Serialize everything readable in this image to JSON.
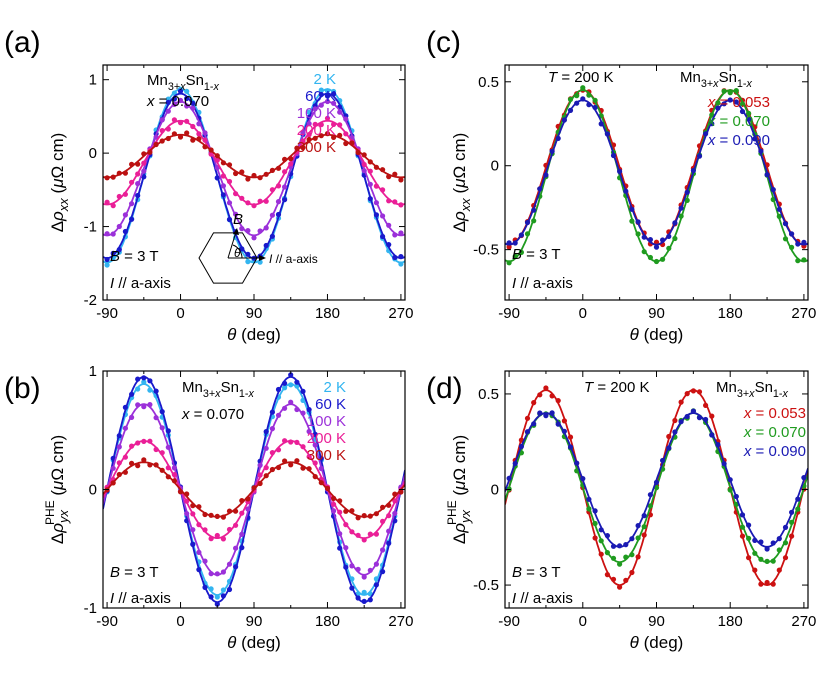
{
  "chart_data": [
    {
      "id": "a",
      "panel_label": "(a)",
      "type": "scatter",
      "xlabel_sym": "θ",
      "xlabel_unit": " (deg)",
      "ylabel_sym": "Δρ",
      "ylabel_sub": "xx",
      "ylabel_unit": "(μΩ cm)",
      "xlim": [
        -95,
        275
      ],
      "ylim": [
        -2,
        1.2
      ],
      "xticks": [
        -90,
        0,
        90,
        180,
        270
      ],
      "yticks": [
        -2,
        -1,
        0,
        1
      ],
      "material": {
        "base": "Mn",
        "sub1": "3+",
        "sub1i": "x",
        "mid": "Sn",
        "sub2": "1-",
        "sub2i": "x"
      },
      "x_value": "x = 0.070",
      "field": "B = 3 T",
      "current": "I // a-axis",
      "inset": {
        "b_label": "B",
        "theta_label": "θ",
        "i_label": "I // a-axis"
      },
      "legend_title": "",
      "series": [
        {
          "name": "2 K",
          "color": "#33b5f0",
          "func": "cos",
          "amp": 1.18,
          "offset": -0.31
        },
        {
          "name": "60 K",
          "color": "#1919cc",
          "func": "cos",
          "amp": 1.12,
          "offset": -0.31
        },
        {
          "name": "100 K",
          "color": "#9b30d9",
          "func": "cos",
          "amp": 0.91,
          "offset": -0.21
        },
        {
          "name": "200 K",
          "color": "#ea1f97",
          "func": "cos",
          "amp": 0.57,
          "offset": -0.13
        },
        {
          "name": "300 K",
          "color": "#bb1111",
          "func": "cos",
          "amp": 0.29,
          "offset": -0.04
        }
      ]
    },
    {
      "id": "b",
      "panel_label": "(b)",
      "type": "scatter",
      "xlabel_sym": "θ",
      "xlabel_unit": " (deg)",
      "ylabel_sym": "Δρ",
      "ylabel_sub": "yx",
      "ylabel_sup": "PHE",
      "ylabel_unit": "(μΩ cm)",
      "xlim": [
        -95,
        275
      ],
      "ylim": [
        -1,
        1
      ],
      "xticks": [
        -90,
        0,
        90,
        180,
        270
      ],
      "yticks": [
        -1,
        0,
        1
      ],
      "material": {
        "base": "Mn",
        "sub1": "3+",
        "sub1i": "x",
        "mid": "Sn",
        "sub2": "1-",
        "sub2i": "x"
      },
      "x_value": "x = 0.070",
      "field": "B = 3 T",
      "current": "I // a-axis",
      "series": [
        {
          "name": "2 K",
          "color": "#33b5f0",
          "func": "sin",
          "amp": 0.89,
          "offset": 0
        },
        {
          "name": "60 K",
          "color": "#1919cc",
          "func": "sin",
          "amp": 0.95,
          "offset": 0
        },
        {
          "name": "100 K",
          "color": "#9b30d9",
          "func": "sin",
          "amp": 0.72,
          "offset": 0
        },
        {
          "name": "200 K",
          "color": "#ea1f97",
          "func": "sin",
          "amp": 0.41,
          "offset": 0
        },
        {
          "name": "300 K",
          "color": "#bb1111",
          "func": "sin",
          "amp": 0.23,
          "offset": 0
        }
      ]
    },
    {
      "id": "c",
      "panel_label": "(c)",
      "type": "scatter",
      "xlabel_sym": "θ",
      "xlabel_unit": " (deg)",
      "ylabel_sym": "Δρ",
      "ylabel_sub": "xx",
      "ylabel_unit": "(μΩ cm)",
      "xlim": [
        -95,
        275
      ],
      "ylim": [
        -0.8,
        0.6
      ],
      "xticks": [
        -90,
        0,
        90,
        180,
        270
      ],
      "yticks": [
        -0.5,
        0,
        0.5
      ],
      "ytick_labels": [
        "-0.5",
        "0",
        "0.5"
      ],
      "temperature": "T = 200 K",
      "material": {
        "base": "Mn",
        "sub1": "3+",
        "sub1i": "x",
        "mid": "Sn",
        "sub2": "1-",
        "sub2i": "x"
      },
      "field": "B = 3 T",
      "current": "I // a-axis",
      "series": [
        {
          "name": "x = 0.053",
          "color": "#cc1111",
          "func": "cos",
          "amp": 0.46,
          "offset": -0.01
        },
        {
          "name": "x = 0.070",
          "color": "#1f9b1f",
          "func": "cos",
          "amp": 0.51,
          "offset": -0.06
        },
        {
          "name": "x = 0.090",
          "color": "#1a1ab3",
          "func": "cos",
          "amp": 0.43,
          "offset": -0.04
        }
      ]
    },
    {
      "id": "d",
      "panel_label": "(d)",
      "type": "scatter",
      "xlabel_sym": "θ",
      "xlabel_unit": " (deg)",
      "ylabel_sym": "Δρ",
      "ylabel_sub": "yx",
      "ylabel_sup": "PHE",
      "ylabel_unit": "(μΩ cm)",
      "xlim": [
        -95,
        275
      ],
      "ylim": [
        -0.62,
        0.62
      ],
      "xticks": [
        -90,
        0,
        90,
        180,
        270
      ],
      "yticks": [
        -0.5,
        0,
        0.5
      ],
      "ytick_labels": [
        "-0.5",
        "0",
        "0.5"
      ],
      "temperature": "T = 200 K",
      "material": {
        "base": "Mn",
        "sub1": "3+",
        "sub1i": "x",
        "mid": "Sn",
        "sub2": "1-",
        "sub2i": "x"
      },
      "field": "B = 3 T",
      "current": "I // a-axis",
      "series": [
        {
          "name": "x = 0.053",
          "color": "#cc1111",
          "func": "sin",
          "amp": 0.51,
          "offset": 0.01
        },
        {
          "name": "x = 0.070",
          "color": "#1f9b1f",
          "func": "sin",
          "amp": 0.39,
          "offset": 0.01
        },
        {
          "name": "x = 0.090",
          "color": "#1a1ab3",
          "func": "sin",
          "amp": 0.35,
          "offset": 0.05
        }
      ]
    }
  ]
}
